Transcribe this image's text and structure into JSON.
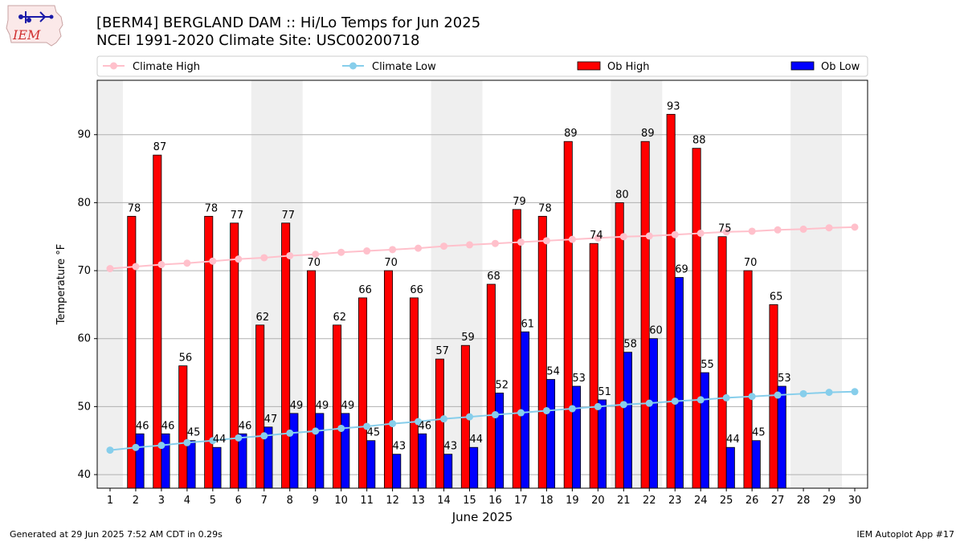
{
  "header": {
    "logo_text": "IEM",
    "title_line1": "[BERM4] BERGLAND DAM :: Hi/Lo Temps for Jun 2025",
    "title_line2": "NCEI 1991-2020 Climate Site: USC00200718"
  },
  "footer": {
    "generated": "Generated at 29 Jun 2025 7:52 AM CDT in 0.29s",
    "app": "IEM Autoplot App #17"
  },
  "colors": {
    "ob_high": "#ff0000",
    "ob_low": "#0000ff",
    "climate_high": "#ffc0cb",
    "climate_low": "#87ceeb",
    "weekend_band": "#efefef",
    "grid": "#b0b0b0"
  },
  "chart_data": {
    "type": "bar",
    "xlabel": "June 2025",
    "ylabel": "Temperature °F",
    "xlim": [
      0.5,
      30.5
    ],
    "ylim": [
      38,
      98
    ],
    "yticks": [
      40,
      50,
      60,
      70,
      80,
      90
    ],
    "grid": "horizontal",
    "legend_position": "top",
    "x": [
      1,
      2,
      3,
      4,
      5,
      6,
      7,
      8,
      9,
      10,
      11,
      12,
      13,
      14,
      15,
      16,
      17,
      18,
      19,
      20,
      21,
      22,
      23,
      24,
      25,
      26,
      27,
      28,
      29,
      30
    ],
    "weekend_bands": [
      [
        0.5,
        1.5
      ],
      [
        6.5,
        8.5
      ],
      [
        13.5,
        15.5
      ],
      [
        20.5,
        22.5
      ],
      [
        27.5,
        29.5
      ]
    ],
    "series": [
      {
        "name": "Climate High",
        "kind": "line",
        "values": [
          70.3,
          70.6,
          70.9,
          71.1,
          71.4,
          71.7,
          71.9,
          72.2,
          72.4,
          72.7,
          72.9,
          73.1,
          73.3,
          73.6,
          73.8,
          74.0,
          74.2,
          74.4,
          74.6,
          74.8,
          75.0,
          75.1,
          75.3,
          75.5,
          75.7,
          75.8,
          76.0,
          76.1,
          76.3,
          76.4
        ]
      },
      {
        "name": "Climate Low",
        "kind": "line",
        "values": [
          43.6,
          44.0,
          44.3,
          44.7,
          45.0,
          45.4,
          45.7,
          46.1,
          46.4,
          46.8,
          47.1,
          47.5,
          47.8,
          48.2,
          48.5,
          48.8,
          49.1,
          49.4,
          49.7,
          50.0,
          50.3,
          50.5,
          50.8,
          51.0,
          51.3,
          51.5,
          51.7,
          51.9,
          52.1,
          52.2
        ]
      },
      {
        "name": "Ob High",
        "kind": "bar",
        "values": [
          null,
          78,
          87,
          56,
          78,
          77,
          62,
          77,
          70,
          62,
          66,
          70,
          66,
          57,
          59,
          68,
          79,
          78,
          89,
          74,
          80,
          89,
          93,
          88,
          75,
          70,
          65,
          null,
          null,
          null
        ]
      },
      {
        "name": "Ob Low",
        "kind": "bar",
        "values": [
          null,
          46,
          46,
          45,
          44,
          46,
          47,
          49,
          49,
          49,
          45,
          43,
          46,
          43,
          44,
          52,
          61,
          54,
          53,
          51,
          58,
          60,
          69,
          55,
          44,
          45,
          53,
          null,
          null,
          null
        ]
      }
    ]
  }
}
